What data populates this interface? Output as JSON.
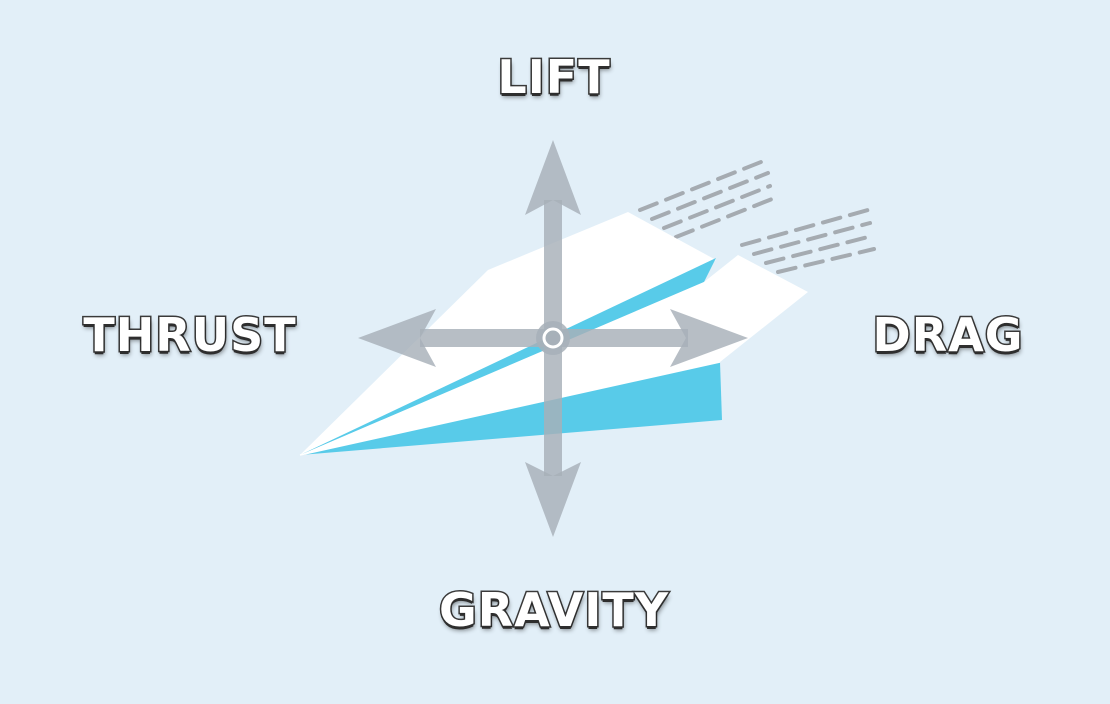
{
  "forces": {
    "lift": "LIFT",
    "thrust": "THRUST",
    "drag": "DRAG",
    "gravity": "GRAVITY"
  },
  "colors": {
    "background": "#e2eff8",
    "plane_body": "#ffffff",
    "plane_accent": "#58cbe9",
    "arrow": "#a7b0b8",
    "speed_lines": "#a5abb1",
    "label_fill": "#ffffff",
    "label_outline": "#3b3b3b"
  }
}
